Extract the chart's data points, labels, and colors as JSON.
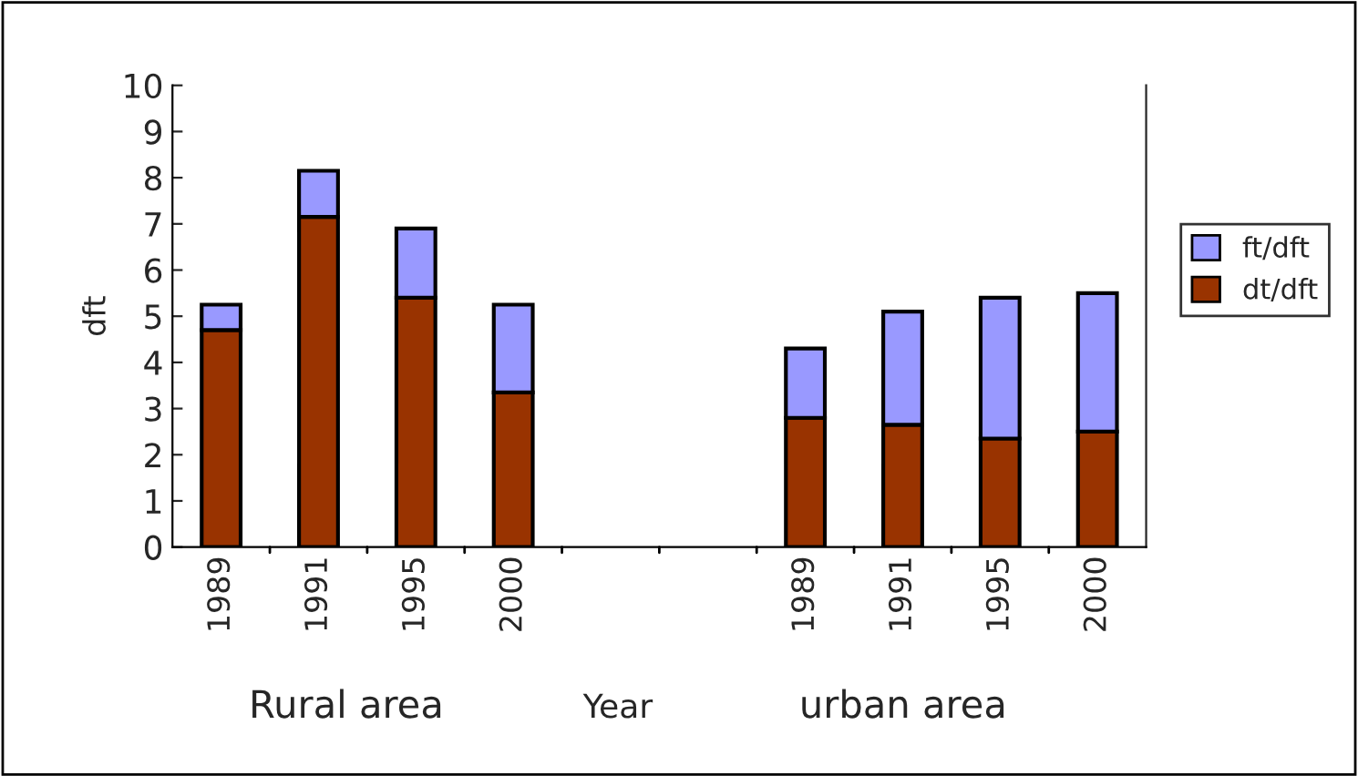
{
  "chart_data": {
    "type": "bar",
    "stacked": true,
    "ylabel": "dft",
    "xlabel": "Year",
    "categories": [
      "1989",
      "1991",
      "1995",
      "2000",
      null,
      null,
      "1989",
      "1991",
      "1995",
      "2000"
    ],
    "series": [
      {
        "name": "dt/dft",
        "color": "#993300",
        "values": [
          4.7,
          7.15,
          5.4,
          3.35,
          null,
          null,
          2.8,
          2.65,
          2.35,
          2.5
        ]
      },
      {
        "name": "ft/dft",
        "color": "#9999ff",
        "values": [
          0.55,
          1.0,
          1.5,
          1.9,
          null,
          null,
          1.5,
          2.45,
          3.05,
          3.0
        ]
      }
    ],
    "ylim": [
      0,
      10
    ],
    "yticks": [
      0,
      1,
      2,
      3,
      4,
      5,
      6,
      7,
      8,
      9,
      10
    ],
    "grid": false,
    "legend": "right",
    "annotations": [
      "Rural area",
      "urban area"
    ]
  }
}
